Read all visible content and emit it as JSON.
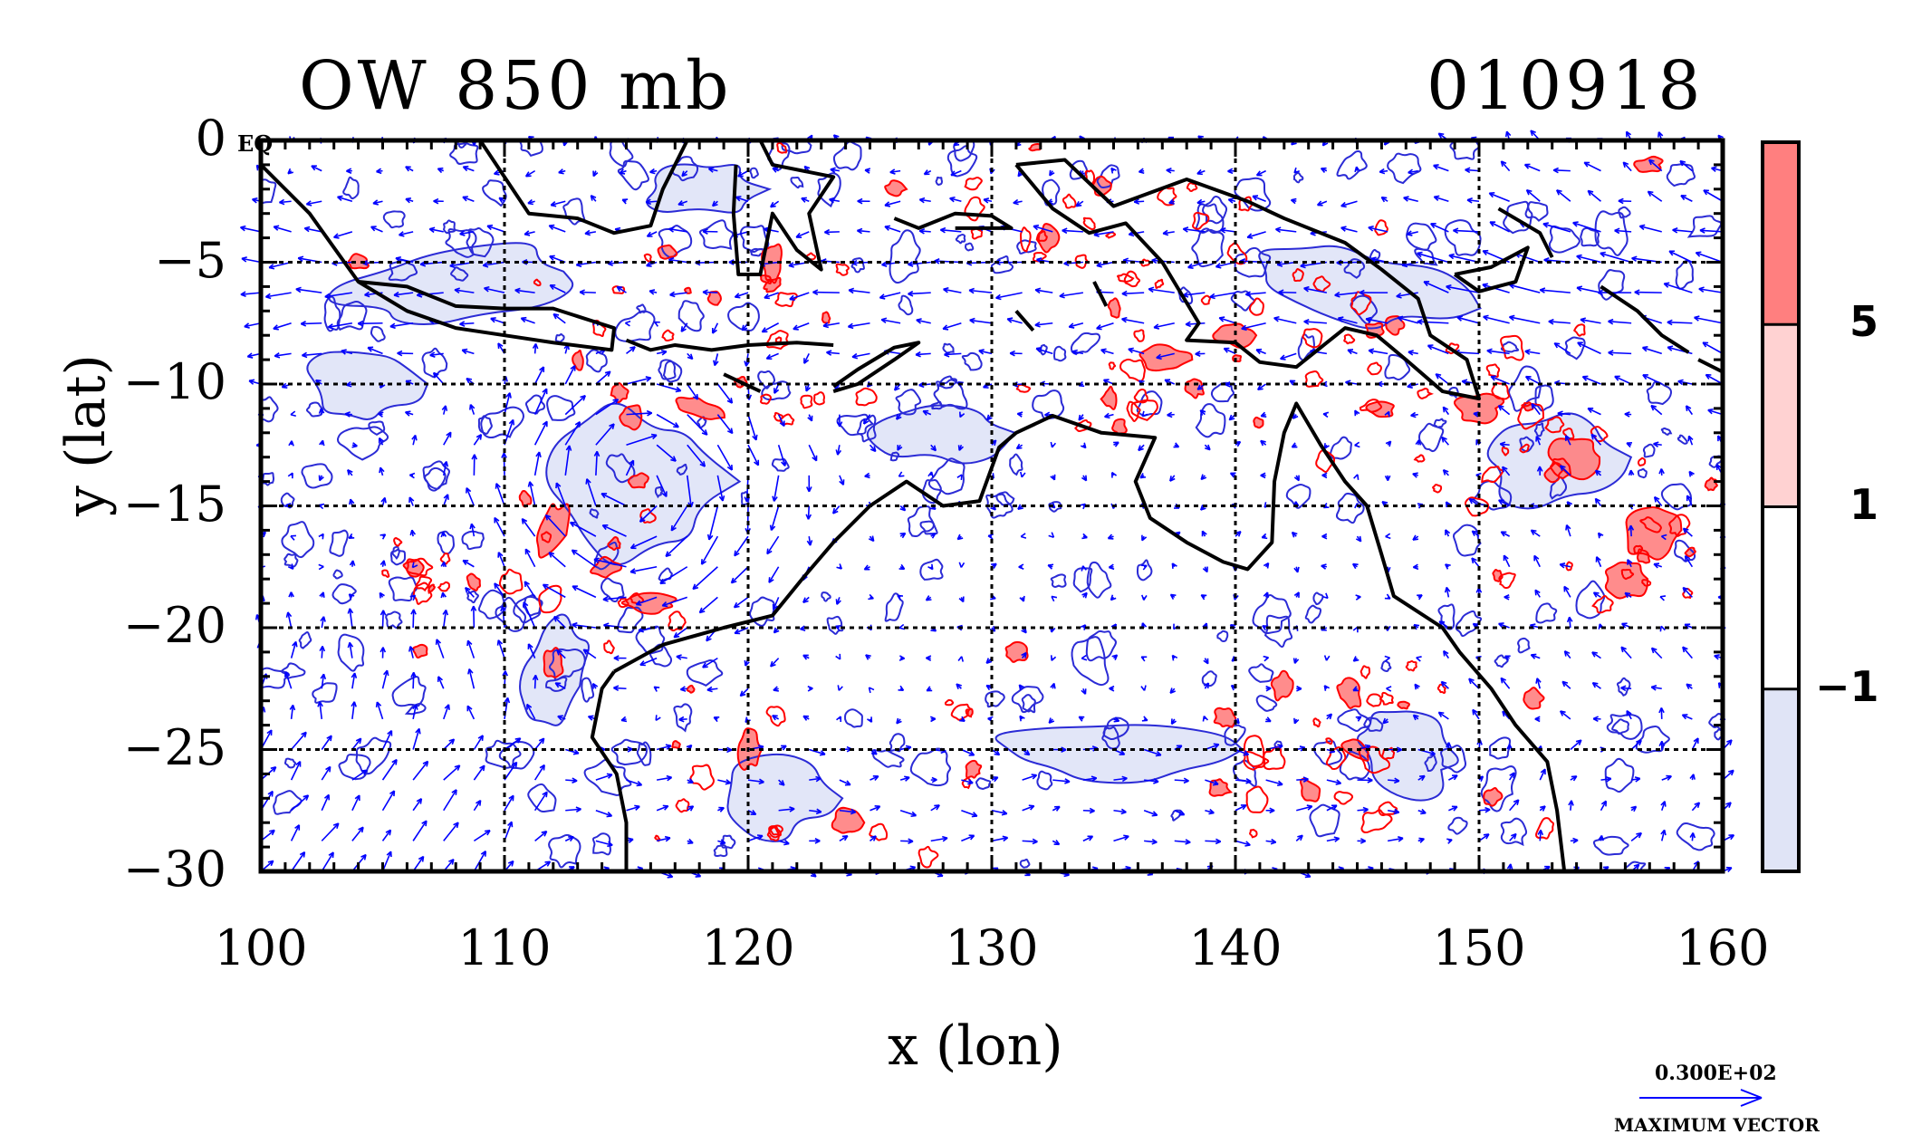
{
  "title_left": "OW 850 mb",
  "title_right": "010918",
  "xlabel": "x (lon)",
  "ylabel": "y (lat)",
  "equator_label": "EQ",
  "x_ticks": [
    "100",
    "110",
    "120",
    "130",
    "140",
    "150",
    "160"
  ],
  "y_ticks": [
    "0",
    "−5",
    "−10",
    "−15",
    "−20",
    "−25",
    "−30"
  ],
  "colorbar": {
    "labels": [
      "5",
      "1",
      "−1"
    ],
    "levels": [
      -1,
      1,
      5
    ],
    "colors": [
      "#e0e4f6",
      "#ffffff",
      "#ffd2d2",
      "#ff7f7f"
    ]
  },
  "vector_legend": {
    "value": "0.300E+02",
    "label": "MAXIMUM VECTOR",
    "color": "#0000ff"
  },
  "colors": {
    "vector": "#0000ff",
    "positive_contour": "#ff0000",
    "negative_contour": "#2b2bd6",
    "coastline": "#000000",
    "negative_fill": "#dfe3f7",
    "positive_fill": "#ff8080"
  },
  "chart_data": {
    "type": "contour",
    "x_range": [
      100,
      160
    ],
    "y_range": [
      -30,
      0
    ],
    "x_ticks": [
      100,
      110,
      120,
      130,
      140,
      150,
      160
    ],
    "y_ticks": [
      0,
      -5,
      -10,
      -15,
      -20,
      -25,
      -30
    ],
    "grid": true,
    "contour_levels": [
      -1,
      1,
      5
    ],
    "features": {
      "cyclone_center": [
        115.5,
        -14
      ]
    }
  }
}
